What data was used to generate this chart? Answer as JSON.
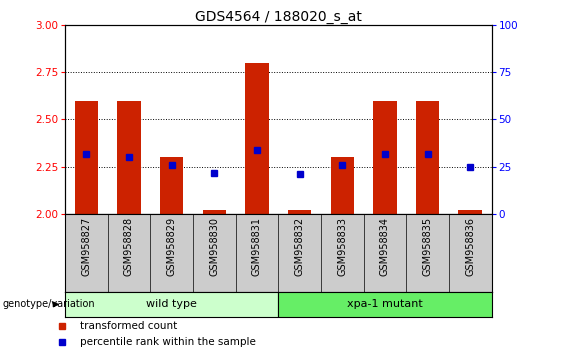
{
  "title": "GDS4564 / 188020_s_at",
  "samples": [
    "GSM958827",
    "GSM958828",
    "GSM958829",
    "GSM958830",
    "GSM958831",
    "GSM958832",
    "GSM958833",
    "GSM958834",
    "GSM958835",
    "GSM958836"
  ],
  "red_bar_top": [
    2.6,
    2.6,
    2.3,
    2.02,
    2.8,
    2.02,
    2.3,
    2.6,
    2.6,
    2.02
  ],
  "red_bar_bottom": [
    2.0,
    2.0,
    2.0,
    2.0,
    2.0,
    2.0,
    2.0,
    2.0,
    2.0,
    2.0
  ],
  "blue_dot_y": [
    2.32,
    2.3,
    2.26,
    2.22,
    2.34,
    2.21,
    2.26,
    2.32,
    2.32,
    2.25
  ],
  "ylim": [
    2.0,
    3.0
  ],
  "yticks_left": [
    2.0,
    2.25,
    2.5,
    2.75,
    3.0
  ],
  "yticks_right": [
    0,
    25,
    50,
    75,
    100
  ],
  "groups": [
    {
      "label": "wild type",
      "start": 0,
      "end": 5,
      "color": "#ccffcc"
    },
    {
      "label": "xpa-1 mutant",
      "start": 5,
      "end": 10,
      "color": "#66ee66"
    }
  ],
  "bar_color": "#cc2200",
  "dot_color": "#0000cc",
  "label_bg_color": "#cccccc",
  "bg_color": "#ffffff",
  "title_fontsize": 10,
  "tick_fontsize": 7.5,
  "label_fontsize": 7,
  "legend_items": [
    "transformed count",
    "percentile rank within the sample"
  ]
}
